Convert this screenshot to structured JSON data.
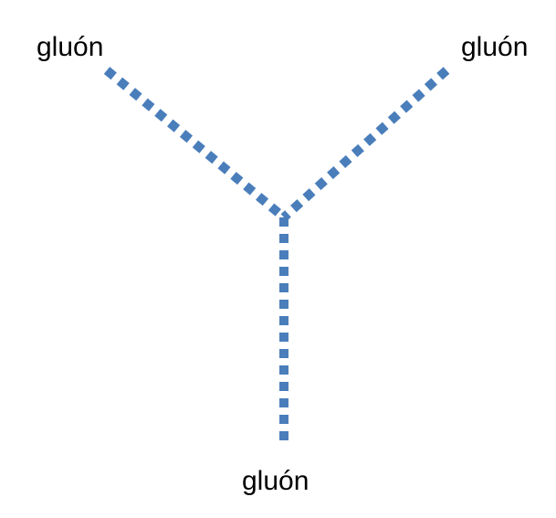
{
  "diagram": {
    "line_color": "#4a7ebb",
    "labels": {
      "top_left": "gluón",
      "top_right": "gluón",
      "bottom": "gluón"
    }
  }
}
